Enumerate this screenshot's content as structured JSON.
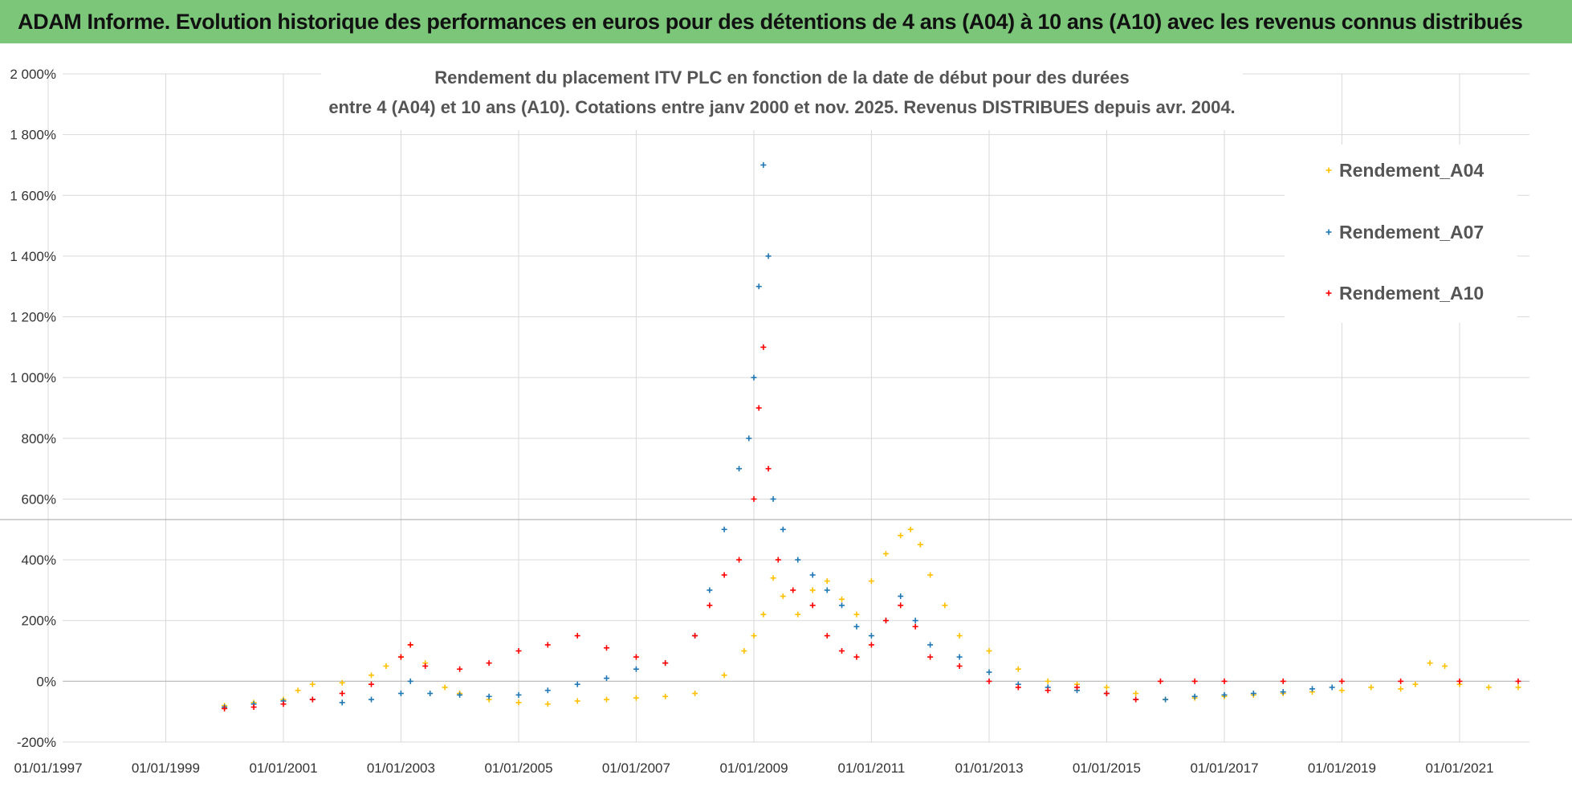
{
  "banner": {
    "title": "ADAM Informe. Evolution historique des performances en euros pour des détentions de 4 ans (A04) à 10 ans (A10) avec les revenus connus distribués"
  },
  "chart_data": {
    "type": "scatter",
    "title_line1": "Rendement du placement ITV PLC en fonction de la date de début pour des durées",
    "title_line2": "entre 4 (A04) et 10 ans (A10).  Cotations entre janv 2000 et nov. 2025. Revenus DISTRIBUES depuis avr. 2004.",
    "xlabel": "",
    "ylabel": "",
    "xlim": [
      "1997-01-01",
      "2021-12-31"
    ],
    "ylim": [
      -200,
      2000
    ],
    "y_ticks": [
      -200,
      0,
      200,
      400,
      600,
      800,
      1000,
      1200,
      1400,
      1600,
      1800,
      2000
    ],
    "y_tick_labels": [
      "-200%",
      "0%",
      "200%",
      "400%",
      "600%",
      "800%",
      "1 000%",
      "1 200%",
      "1 400%",
      "1 600%",
      "1 800%",
      "2 000%"
    ],
    "x_ticks": [
      "1997-01-01",
      "1999-01-01",
      "2001-01-01",
      "2003-01-01",
      "2005-01-01",
      "2007-01-01",
      "2009-01-01",
      "2011-01-01",
      "2013-01-01",
      "2015-01-01",
      "2017-01-01",
      "2019-01-01",
      "2021-01-01"
    ],
    "x_tick_labels": [
      "01/01/1997",
      "01/01/1999",
      "01/01/2001",
      "01/01/2003",
      "01/01/2005",
      "01/01/2007",
      "01/01/2009",
      "01/01/2011",
      "01/01/2013",
      "01/01/2015",
      "01/01/2017",
      "01/01/2019",
      "01/01/2021"
    ],
    "grid": true,
    "legend_position": "top-right",
    "marker": "+",
    "series": [
      {
        "name": "Rendement_A04",
        "color": "#ffc000",
        "x": [
          "2000-01-01",
          "2000-07-01",
          "2001-01-01",
          "2001-04-01",
          "2001-07-01",
          "2002-01-01",
          "2002-07-01",
          "2002-10-01",
          "2003-01-01",
          "2003-03-01",
          "2003-06-01",
          "2003-10-01",
          "2004-01-01",
          "2004-07-01",
          "2005-01-01",
          "2005-07-01",
          "2006-01-01",
          "2006-07-01",
          "2007-01-01",
          "2007-07-01",
          "2008-01-01",
          "2008-07-01",
          "2008-11-01",
          "2009-01-01",
          "2009-03-01",
          "2009-05-01",
          "2009-07-01",
          "2009-10-01",
          "2010-01-01",
          "2010-04-01",
          "2010-07-01",
          "2010-10-01",
          "2011-01-01",
          "2011-04-01",
          "2011-07-01",
          "2011-09-01",
          "2011-11-01",
          "2012-01-01",
          "2012-04-01",
          "2012-07-01",
          "2013-01-01",
          "2013-07-01",
          "2014-01-01",
          "2014-07-01",
          "2015-01-01",
          "2015-07-01",
          "2016-01-01",
          "2016-07-01",
          "2017-01-01",
          "2017-07-01",
          "2018-01-01",
          "2018-07-01",
          "2019-01-01",
          "2019-07-01",
          "2020-01-01",
          "2020-04-01",
          "2020-07-01",
          "2020-10-01",
          "2021-01-01",
          "2021-07-01",
          "2021-12-31"
        ],
        "y": [
          -80,
          -70,
          -60,
          -30,
          -10,
          -5,
          20,
          50,
          80,
          120,
          60,
          -20,
          -40,
          -60,
          -70,
          -75,
          -65,
          -60,
          -55,
          -50,
          -40,
          20,
          100,
          150,
          220,
          340,
          280,
          220,
          300,
          330,
          270,
          220,
          330,
          420,
          480,
          500,
          450,
          350,
          250,
          150,
          100,
          40,
          0,
          -10,
          -20,
          -40,
          -60,
          -55,
          -50,
          -45,
          -40,
          -35,
          -30,
          -20,
          -25,
          -10,
          60,
          50,
          -10,
          -20,
          -20
        ]
      },
      {
        "name": "Rendement_A07",
        "color": "#1f77b4",
        "x": [
          "2000-01-01",
          "2000-07-01",
          "2001-01-01",
          "2001-07-01",
          "2002-01-01",
          "2002-07-01",
          "2003-01-01",
          "2003-03-01",
          "2003-07-01",
          "2004-01-01",
          "2004-07-01",
          "2005-01-01",
          "2005-07-01",
          "2006-01-01",
          "2006-07-01",
          "2007-01-01",
          "2007-07-01",
          "2008-01-01",
          "2008-04-01",
          "2008-07-01",
          "2008-10-01",
          "2008-12-01",
          "2009-01-01",
          "2009-02-01",
          "2009-03-01",
          "2009-04-01",
          "2009-05-01",
          "2009-07-01",
          "2009-10-01",
          "2010-01-01",
          "2010-04-01",
          "2010-07-01",
          "2010-10-01",
          "2011-01-01",
          "2011-04-01",
          "2011-07-01",
          "2011-10-01",
          "2012-01-01",
          "2012-07-01",
          "2013-01-01",
          "2013-07-01",
          "2014-01-01",
          "2014-07-01",
          "2015-01-01",
          "2015-07-01",
          "2016-01-01",
          "2016-07-01",
          "2017-01-01",
          "2017-07-01",
          "2018-01-01",
          "2018-07-01",
          "2018-11-01"
        ],
        "y": [
          -85,
          -75,
          -65,
          -60,
          -70,
          -60,
          -40,
          0,
          -40,
          -45,
          -50,
          -45,
          -30,
          -10,
          10,
          40,
          60,
          150,
          300,
          500,
          700,
          800,
          1000,
          1300,
          1700,
          1400,
          600,
          500,
          400,
          350,
          300,
          250,
          180,
          150,
          200,
          280,
          200,
          120,
          80,
          30,
          -10,
          -20,
          -30,
          -40,
          -60,
          -60,
          -50,
          -45,
          -40,
          -35,
          -25,
          -20
        ]
      },
      {
        "name": "Rendement_A10",
        "color": "#ff0000",
        "x": [
          "2000-01-01",
          "2000-07-01",
          "2001-01-01",
          "2001-07-01",
          "2002-01-01",
          "2002-07-01",
          "2003-01-01",
          "2003-03-01",
          "2003-06-01",
          "2004-01-01",
          "2004-07-01",
          "2005-01-01",
          "2005-07-01",
          "2006-01-01",
          "2006-07-01",
          "2007-01-01",
          "2007-07-01",
          "2008-01-01",
          "2008-04-01",
          "2008-07-01",
          "2008-10-01",
          "2009-01-01",
          "2009-02-01",
          "2009-03-01",
          "2009-04-01",
          "2009-06-01",
          "2009-09-01",
          "2010-01-01",
          "2010-04-01",
          "2010-07-01",
          "2010-10-01",
          "2011-01-01",
          "2011-04-01",
          "2011-07-01",
          "2011-10-01",
          "2012-01-01",
          "2012-07-01",
          "2013-01-01",
          "2013-07-01",
          "2014-01-01",
          "2014-07-01",
          "2015-01-01",
          "2015-07-01",
          "2015-12-01",
          "2016-07-01",
          "2017-01-01",
          "2018-01-01",
          "2019-01-01",
          "2020-01-01",
          "2021-01-01",
          "2021-12-31"
        ],
        "y": [
          -90,
          -85,
          -75,
          -60,
          -40,
          -10,
          80,
          120,
          50,
          40,
          60,
          100,
          120,
          150,
          110,
          80,
          60,
          150,
          250,
          350,
          400,
          600,
          900,
          1100,
          700,
          400,
          300,
          250,
          150,
          100,
          80,
          120,
          200,
          250,
          180,
          80,
          50,
          0,
          -20,
          -30,
          -20,
          -40,
          -60,
          0,
          0,
          0,
          0,
          0,
          0,
          0,
          0
        ]
      }
    ]
  }
}
